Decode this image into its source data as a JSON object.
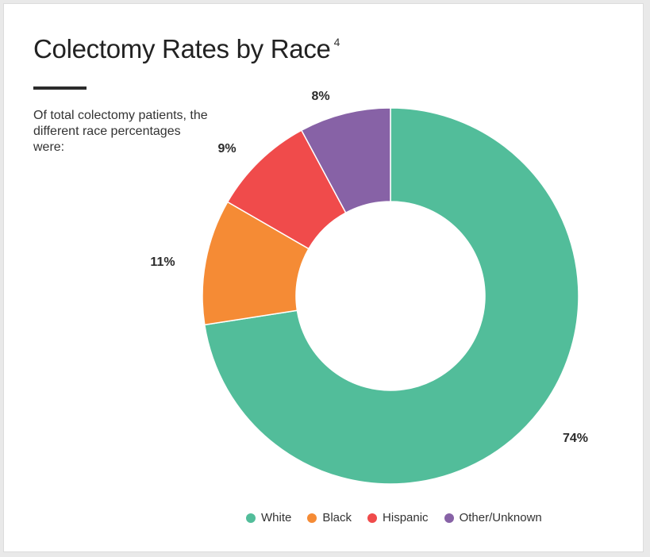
{
  "header": {
    "title": "Colectomy Rates by Race",
    "footnote": "4",
    "subtitle": "Of total colectomy patients, the different race percentages were:"
  },
  "chart_data": {
    "type": "pie",
    "donut": true,
    "categories": [
      "White",
      "Black",
      "Hispanic",
      "Other/Unknown"
    ],
    "values": [
      74,
      11,
      9,
      8
    ],
    "value_labels": [
      "74%",
      "11%",
      "9%",
      "8%"
    ],
    "colors": [
      "#52bd9a",
      "#f58b35",
      "#f04b4b",
      "#8762a6"
    ],
    "legend_position": "bottom"
  }
}
